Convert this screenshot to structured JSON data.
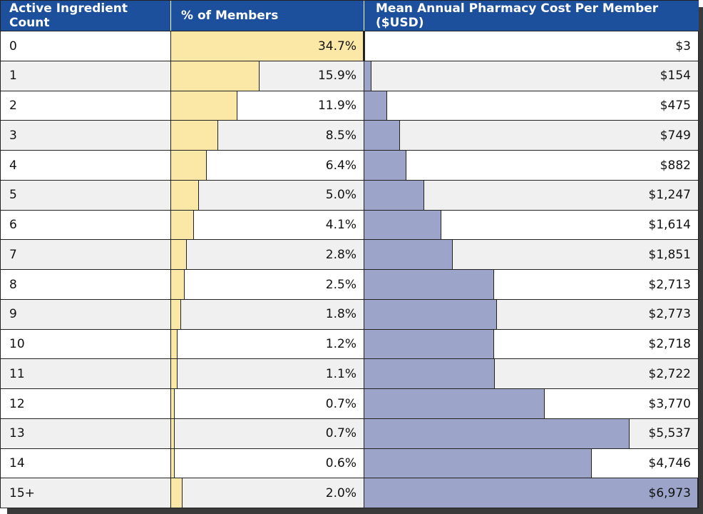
{
  "colors": {
    "header": "#1c4f9c",
    "member_bar": "#fbe8a6",
    "cost_bar": "#9ca5c9"
  },
  "headers": {
    "count": "Active Ingredient Count",
    "members": "% of Members",
    "cost": "Mean Annual Pharmacy Cost Per Member ($USD)"
  },
  "rows": [
    {
      "count": "0",
      "members": "34.7%",
      "cost": "$3"
    },
    {
      "count": "1",
      "members": "15.9%",
      "cost": "$154"
    },
    {
      "count": "2",
      "members": "11.9%",
      "cost": "$475"
    },
    {
      "count": "3",
      "members": "8.5%",
      "cost": "$749"
    },
    {
      "count": "4",
      "members": "6.4%",
      "cost": "$882"
    },
    {
      "count": "5",
      "members": "5.0%",
      "cost": "$1,247"
    },
    {
      "count": "6",
      "members": "4.1%",
      "cost": "$1,614"
    },
    {
      "count": "7",
      "members": "2.8%",
      "cost": "$1,851"
    },
    {
      "count": "8",
      "members": "2.5%",
      "cost": "$2,713"
    },
    {
      "count": "9",
      "members": "1.8%",
      "cost": "$2,773"
    },
    {
      "count": "10",
      "members": "1.2%",
      "cost": "$2,718"
    },
    {
      "count": "11",
      "members": "1.1%",
      "cost": "$2,722"
    },
    {
      "count": "12",
      "members": "0.7%",
      "cost": "$3,770"
    },
    {
      "count": "13",
      "members": "0.7%",
      "cost": "$5,537"
    },
    {
      "count": "14",
      "members": "0.6%",
      "cost": "$4,746"
    },
    {
      "count": "15+",
      "members": "2.0%",
      "cost": "$6,973"
    }
  ],
  "chart_data": {
    "type": "table",
    "categories": [
      "0",
      "1",
      "2",
      "3",
      "4",
      "5",
      "6",
      "7",
      "8",
      "9",
      "10",
      "11",
      "12",
      "13",
      "14",
      "15+"
    ],
    "series": [
      {
        "name": "% of Members",
        "values": [
          34.7,
          15.9,
          11.9,
          8.5,
          6.4,
          5.0,
          4.1,
          2.8,
          2.5,
          1.8,
          1.2,
          1.1,
          0.7,
          0.7,
          0.6,
          2.0
        ]
      },
      {
        "name": "Mean Annual Pharmacy Cost Per Member ($USD)",
        "values": [
          3,
          154,
          475,
          749,
          882,
          1247,
          1614,
          1851,
          2713,
          2773,
          2718,
          2722,
          3770,
          5537,
          4746,
          6973
        ]
      }
    ],
    "members_max": 34.7,
    "cost_max": 6973
  }
}
